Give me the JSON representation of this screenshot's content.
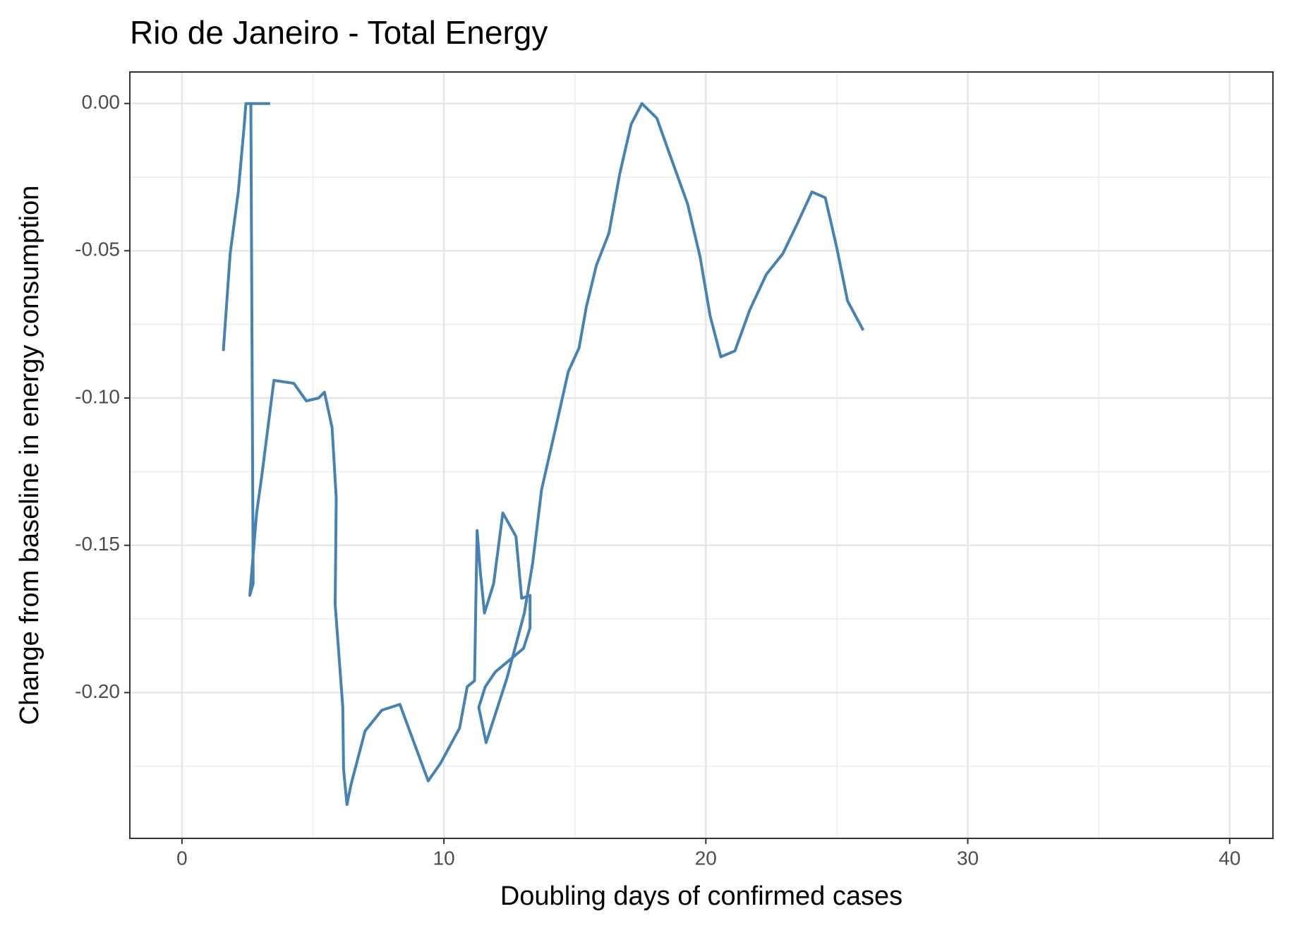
{
  "chart_data": {
    "type": "line",
    "title": "Rio de Janeiro - Total Energy",
    "x_label": "Doubling days of confirmed cases",
    "y_label": "Change from baseline in energy consumption",
    "color": "#4682b4",
    "x": [
      1.58,
      1.84,
      2.15,
      2.37,
      2.44,
      3.32,
      2.63,
      2.72,
      2.59,
      2.85,
      3.04,
      3.51,
      4.27,
      4.75,
      5.22,
      5.44,
      5.73,
      5.89,
      5.85,
      6.14,
      6.17,
      6.3,
      6.46,
      6.99,
      7.63,
      8.32,
      9.4,
      9.87,
      10.6,
      10.89,
      11.17,
      11.23,
      11.27,
      11.39,
      11.55,
      11.9,
      12.25,
      12.75,
      12.97,
      13.29,
      13.29,
      13.04,
      11.96,
      11.58,
      11.33,
      11.61,
      12.41,
      13.07,
      13.39,
      13.73,
      14.27,
      14.75,
      15.16,
      15.44,
      15.82,
      16.3,
      16.71,
      17.15,
      17.56,
      18.13,
      18.61,
      19.3,
      19.78,
      20.16,
      20.57,
      21.11,
      21.68,
      22.31,
      22.94,
      23.48,
      24.05,
      24.56,
      25.0,
      25.41,
      26.01
    ],
    "values": [
      -0.084,
      -0.051,
      -0.03,
      -0.008,
      0,
      0,
      0,
      -0.163,
      -0.167,
      -0.139,
      -0.127,
      -0.094,
      -0.095,
      -0.101,
      -0.1,
      -0.098,
      -0.11,
      -0.134,
      -0.17,
      -0.205,
      -0.226,
      -0.238,
      -0.231,
      -0.213,
      -0.206,
      -0.204,
      -0.23,
      -0.224,
      -0.212,
      -0.198,
      -0.196,
      -0.163,
      -0.145,
      -0.159,
      -0.173,
      -0.163,
      -0.139,
      -0.147,
      -0.168,
      -0.167,
      -0.178,
      -0.185,
      -0.193,
      -0.198,
      -0.205,
      -0.217,
      -0.195,
      -0.173,
      -0.156,
      -0.131,
      -0.11,
      -0.091,
      -0.083,
      -0.069,
      -0.055,
      -0.044,
      -0.024,
      -0.007,
      0,
      -0.005,
      -0.017,
      -0.034,
      -0.052,
      -0.072,
      -0.086,
      -0.084,
      -0.07,
      -0.058,
      -0.051,
      -0.041,
      -0.03,
      -0.032,
      -0.049,
      -0.067,
      -0.077
    ],
    "xlim": [
      -1.99,
      41.65
    ],
    "ylim": [
      -0.2495,
      0.0107
    ],
    "xticks": [
      0,
      10,
      20,
      30,
      40
    ],
    "yticks": [
      {
        "value": 0,
        "label": "0.00"
      },
      {
        "value": -0.05,
        "label": "-0.05"
      },
      {
        "value": -0.1,
        "label": "-0.10"
      },
      {
        "value": -0.15,
        "label": "-0.15"
      },
      {
        "value": -0.2,
        "label": "-0.20"
      }
    ],
    "x_minor_ticks": [
      5,
      15,
      25,
      35
    ],
    "y_minor_ticks": [
      -0.025,
      -0.075,
      -0.125,
      -0.175,
      -0.225
    ],
    "grid": true
  }
}
